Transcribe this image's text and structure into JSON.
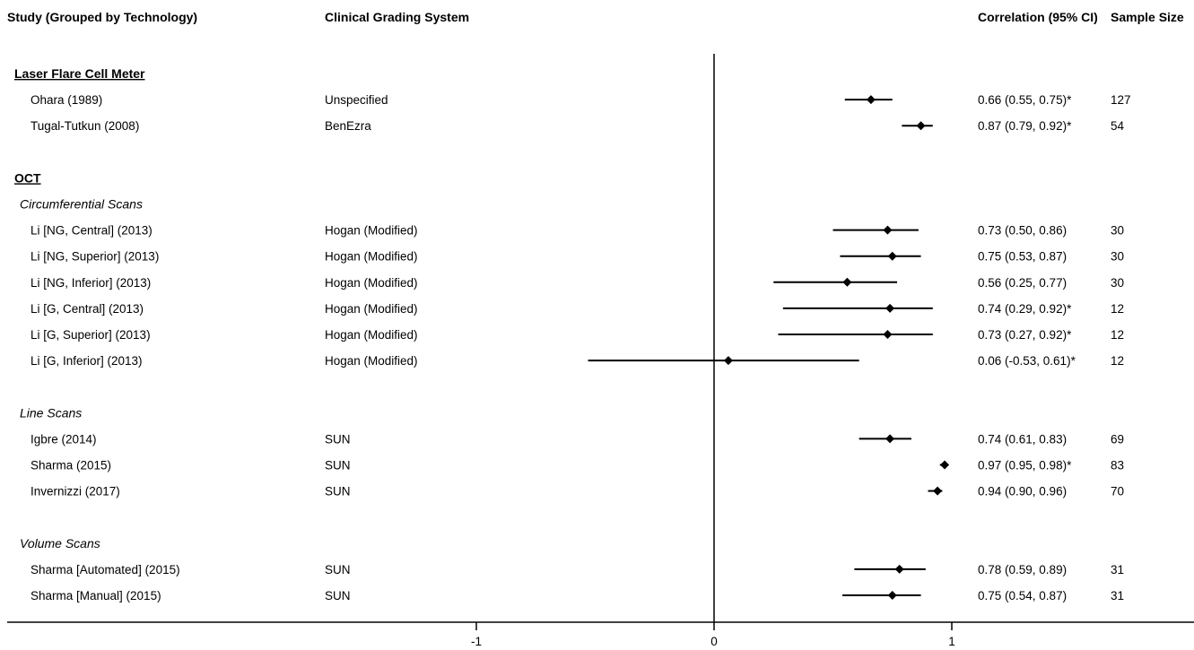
{
  "chart_data": {
    "type": "forest",
    "headers": {
      "study": "Study (Grouped by Technology)",
      "grading": "Clinical Grading System",
      "ci": "Correlation (95% CI)",
      "n": "Sample Size"
    },
    "xlim": [
      -2,
      2
    ],
    "xticks": [
      -1,
      0,
      1
    ],
    "xtick_labels": [
      "-1",
      "0",
      "1"
    ],
    "reference_line": 0,
    "rows": [
      {
        "kind": "group",
        "label": "Laser Flare Cell Meter"
      },
      {
        "kind": "study",
        "study": "Ohara (1989)",
        "grading": "Unspecified",
        "r": 0.66,
        "lo": 0.55,
        "hi": 0.75,
        "ci_text": "0.66 (0.55, 0.75)*",
        "n": "127"
      },
      {
        "kind": "study",
        "study": "Tugal-Tutkun (2008)",
        "grading": "BenEzra",
        "r": 0.87,
        "lo": 0.79,
        "hi": 0.92,
        "ci_text": "0.87 (0.79, 0.92)*",
        "n": "54"
      },
      {
        "kind": "spacer"
      },
      {
        "kind": "group",
        "label": "OCT"
      },
      {
        "kind": "subgroup",
        "label": "Circumferential Scans"
      },
      {
        "kind": "study",
        "study": "Li [NG, Central] (2013)",
        "grading": "Hogan (Modified)",
        "r": 0.73,
        "lo": 0.5,
        "hi": 0.86,
        "ci_text": "0.73 (0.50, 0.86)",
        "n": "30"
      },
      {
        "kind": "study",
        "study": "Li [NG, Superior] (2013)",
        "grading": "Hogan (Modified)",
        "r": 0.75,
        "lo": 0.53,
        "hi": 0.87,
        "ci_text": "0.75 (0.53, 0.87)",
        "n": "30"
      },
      {
        "kind": "study",
        "study": "Li [NG, Inferior] (2013)",
        "grading": "Hogan (Modified)",
        "r": 0.56,
        "lo": 0.25,
        "hi": 0.77,
        "ci_text": "0.56 (0.25, 0.77)",
        "n": "30"
      },
      {
        "kind": "study",
        "study": "Li [G, Central] (2013)",
        "grading": "Hogan (Modified)",
        "r": 0.74,
        "lo": 0.29,
        "hi": 0.92,
        "ci_text": "0.74 (0.29, 0.92)*",
        "n": "12"
      },
      {
        "kind": "study",
        "study": "Li [G, Superior] (2013)",
        "grading": "Hogan (Modified)",
        "r": 0.73,
        "lo": 0.27,
        "hi": 0.92,
        "ci_text": "0.73 (0.27, 0.92)*",
        "n": "12"
      },
      {
        "kind": "study",
        "study": "Li [G, Inferior] (2013)",
        "grading": "Hogan (Modified)",
        "r": 0.06,
        "lo": -0.53,
        "hi": 0.61,
        "ci_text": "0.06 (-0.53, 0.61)*",
        "n": "12"
      },
      {
        "kind": "spacer"
      },
      {
        "kind": "subgroup",
        "label": "Line Scans"
      },
      {
        "kind": "study",
        "study": "Igbre (2014)",
        "grading": "SUN",
        "r": 0.74,
        "lo": 0.61,
        "hi": 0.83,
        "ci_text": "0.74 (0.61, 0.83)",
        "n": "69"
      },
      {
        "kind": "study",
        "study": "Sharma (2015)",
        "grading": "SUN",
        "r": 0.97,
        "lo": 0.95,
        "hi": 0.98,
        "ci_text": "0.97 (0.95, 0.98)*",
        "n": "83"
      },
      {
        "kind": "study",
        "study": "Invernizzi (2017)",
        "grading": "SUN",
        "r": 0.94,
        "lo": 0.9,
        "hi": 0.96,
        "ci_text": "0.94 (0.90, 0.96)",
        "n": "70"
      },
      {
        "kind": "spacer"
      },
      {
        "kind": "subgroup",
        "label": "Volume Scans"
      },
      {
        "kind": "study",
        "study": "Sharma [Automated] (2015)",
        "grading": "SUN",
        "r": 0.78,
        "lo": 0.59,
        "hi": 0.89,
        "ci_text": "0.78 (0.59, 0.89)",
        "n": "31"
      },
      {
        "kind": "study",
        "study": "Sharma [Manual] (2015)",
        "grading": "SUN",
        "r": 0.75,
        "lo": 0.54,
        "hi": 0.87,
        "ci_text": "0.75 (0.54, 0.87)",
        "n": "31"
      }
    ]
  }
}
